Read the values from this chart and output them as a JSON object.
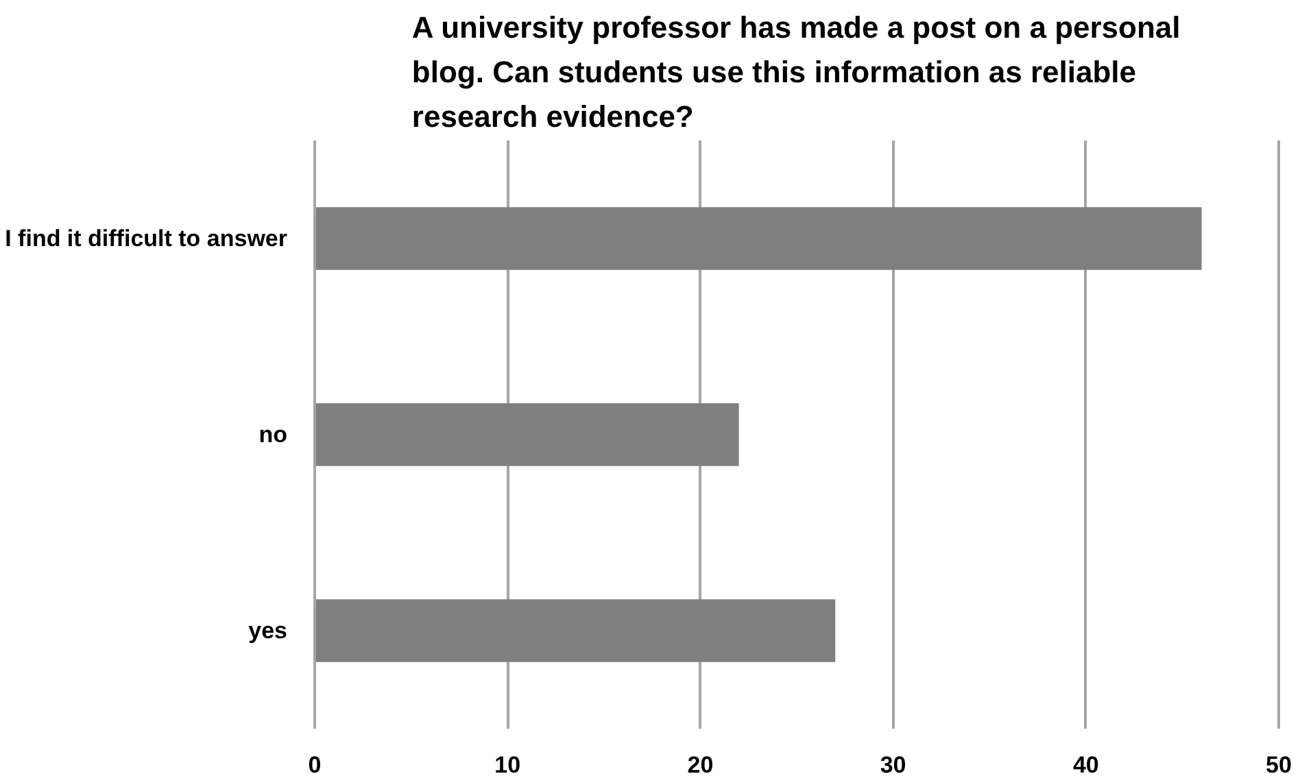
{
  "chart_data": {
    "type": "bar",
    "orientation": "horizontal",
    "title": "A university professor has made a post on a personal blog. Can students use this information as reliable research evidence?",
    "categories": [
      "I find it difficult to answer",
      "no",
      "yes"
    ],
    "values": [
      46,
      22,
      27
    ],
    "color": "#7f7f7f",
    "xlim": [
      0,
      50
    ],
    "xticks": [
      0,
      10,
      20,
      30,
      40,
      50
    ],
    "grid": "x"
  }
}
